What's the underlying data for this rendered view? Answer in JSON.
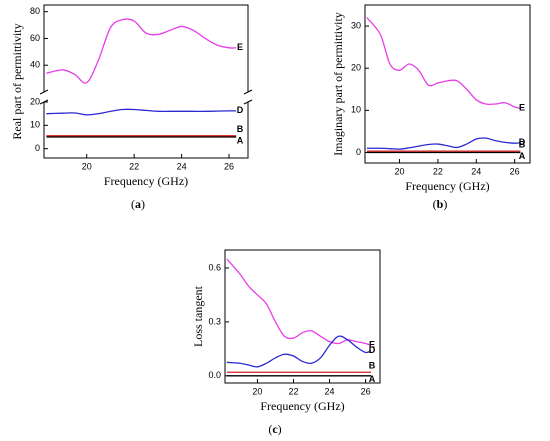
{
  "chart_data": [
    {
      "type": "line",
      "caption_open": "(",
      "caption": "a",
      "caption_close": ")",
      "xlabel": "Frequency (GHz)",
      "ylabel": "Real part of permittivity",
      "x": [
        18.3,
        19,
        19.5,
        20,
        20.5,
        21,
        21.5,
        22,
        22.5,
        23,
        23.5,
        24,
        24.5,
        25,
        25.5,
        26,
        26.3
      ],
      "xlim": [
        18.2,
        26.8
      ],
      "xticks": [
        20,
        22,
        24,
        26
      ],
      "ylim": [
        -4,
        20
      ],
      "yticks": [
        0,
        10,
        20
      ],
      "upper_ylim": [
        20,
        85
      ],
      "upper_yticks": [
        40,
        60,
        80
      ],
      "series": [
        {
          "name": "E",
          "color": "#e83de8",
          "axis": "upper",
          "values": [
            34,
            36.5,
            33,
            27,
            44,
            68,
            74,
            73,
            64,
            63,
            66,
            69,
            66,
            60,
            55,
            53,
            53
          ]
        },
        {
          "name": "D",
          "color": "#2a2ad0",
          "values": [
            15,
            15.2,
            15.3,
            14.5,
            15,
            16,
            16.8,
            16.8,
            16.4,
            16,
            16,
            16,
            16,
            16,
            16.1,
            16.2,
            16.2
          ]
        },
        {
          "name": "B",
          "color": "#d42020",
          "values": [
            5.5,
            5.5,
            5.5,
            5.5,
            5.5,
            5.5,
            5.5,
            5.5,
            5.5,
            5.5,
            5.5,
            5.5,
            5.5,
            5.5,
            5.5,
            5.5,
            5.5
          ]
        },
        {
          "name": "A",
          "color": "#000000",
          "values": [
            5,
            5,
            5,
            5,
            5,
            5,
            5,
            5,
            5,
            5,
            5,
            5,
            5,
            5,
            5,
            5,
            5
          ]
        }
      ]
    },
    {
      "type": "line",
      "caption_open": "(",
      "caption": "b",
      "caption_close": ")",
      "xlabel": "Frequency (GHz)",
      "ylabel": "Imaginary part of permittivity",
      "x": [
        18.3,
        19,
        19.5,
        20,
        20.5,
        21,
        21.5,
        22,
        22.5,
        23,
        23.5,
        24,
        24.5,
        25,
        25.5,
        26,
        26.3
      ],
      "xlim": [
        18.2,
        26.8
      ],
      "xticks": [
        20,
        22,
        24,
        26
      ],
      "ylim": [
        -2.5,
        35
      ],
      "yticks": [
        0,
        10,
        20,
        30
      ],
      "series": [
        {
          "name": "E",
          "color": "#e83de8",
          "values": [
            32,
            28,
            21,
            19.5,
            21,
            19.5,
            16,
            16.5,
            17,
            17,
            15,
            12.5,
            11.5,
            11.5,
            11.8,
            10.8,
            10.5
          ]
        },
        {
          "name": "D",
          "color": "#2a2ad0",
          "values": [
            1,
            1,
            0.9,
            0.8,
            1.1,
            1.5,
            1.9,
            2,
            1.6,
            1.2,
            2,
            3.2,
            3.4,
            2.8,
            2.4,
            2.2,
            2.3
          ]
        },
        {
          "name": "B",
          "color": "#d42020",
          "values": [
            0.3,
            0.3,
            0.3,
            0.3,
            0.3,
            0.3,
            0.3,
            0.3,
            0.3,
            0.3,
            0.3,
            0.3,
            0.3,
            0.3,
            0.3,
            0.3,
            0.3
          ]
        },
        {
          "name": "A",
          "color": "#000000",
          "values": [
            0,
            0,
            0,
            0,
            0,
            0,
            0,
            0,
            0,
            0,
            0,
            0,
            0,
            0,
            0,
            0,
            0
          ]
        }
      ]
    },
    {
      "type": "line",
      "caption_open": "(",
      "caption": "c",
      "caption_close": ")",
      "xlabel": "Frequency (GHz)",
      "ylabel": "Loss tangent",
      "x": [
        18.3,
        19,
        19.5,
        20,
        20.5,
        21,
        21.5,
        22,
        22.5,
        23,
        23.5,
        24,
        24.5,
        25,
        25.5,
        26,
        26.3
      ],
      "xlim": [
        18.2,
        26.8
      ],
      "xticks": [
        20,
        22,
        24,
        26
      ],
      "ylim": [
        -0.04,
        0.7
      ],
      "yticks": [
        {
          "value": 0,
          "label": "0.0"
        },
        0.3,
        0.6
      ],
      "series": [
        {
          "name": "E",
          "color": "#e83de8",
          "values": [
            0.65,
            0.57,
            0.5,
            0.45,
            0.4,
            0.3,
            0.22,
            0.21,
            0.24,
            0.25,
            0.22,
            0.19,
            0.18,
            0.2,
            0.19,
            0.18,
            0.17
          ]
        },
        {
          "name": "D",
          "color": "#2a2ad0",
          "values": [
            0.075,
            0.07,
            0.06,
            0.05,
            0.07,
            0.1,
            0.12,
            0.11,
            0.08,
            0.07,
            0.1,
            0.17,
            0.22,
            0.2,
            0.16,
            0.13,
            0.14
          ]
        },
        {
          "name": "B",
          "color": "#d42020",
          "values": [
            0.02,
            0.02,
            0.02,
            0.02,
            0.02,
            0.02,
            0.02,
            0.02,
            0.02,
            0.02,
            0.02,
            0.02,
            0.02,
            0.02,
            0.02,
            0.02,
            0.02
          ]
        },
        {
          "name": "A",
          "color": "#000000",
          "values": [
            0,
            0,
            0,
            0,
            0,
            0,
            0,
            0,
            0,
            0,
            0,
            0,
            0,
            0,
            0,
            0,
            0
          ]
        }
      ]
    }
  ]
}
